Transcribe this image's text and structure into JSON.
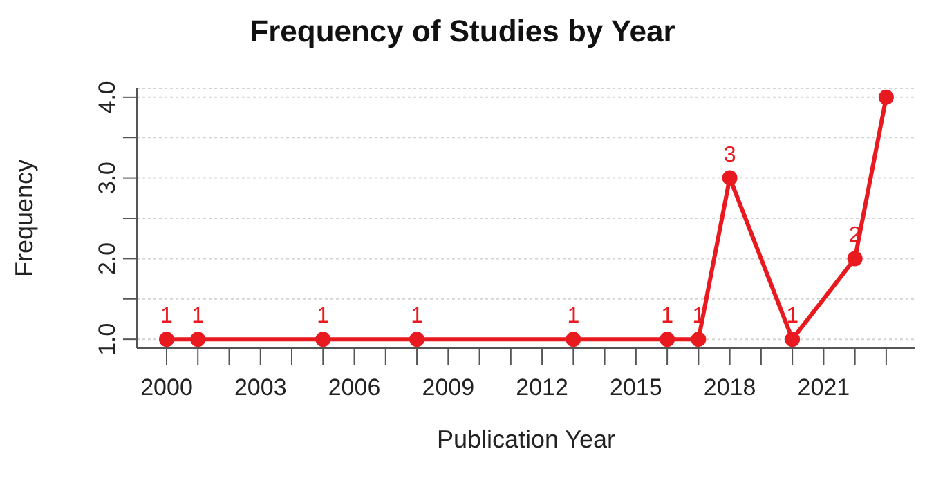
{
  "chart_data": {
    "type": "line",
    "title": "Frequency of Studies by Year",
    "xlabel": "Publication Year",
    "ylabel": "Frequency",
    "x": [
      2000,
      2001,
      2005,
      2008,
      2013,
      2016,
      2017,
      2018,
      2020,
      2022,
      2023
    ],
    "series": [
      {
        "color": "#e8191f",
        "values": [
          1,
          1,
          1,
          1,
          1,
          1,
          1,
          3,
          1,
          2,
          4
        ],
        "value_labels": [
          "1",
          "1",
          "1",
          "1",
          "1",
          "1",
          "1",
          "3",
          "1",
          "2",
          null
        ]
      }
    ],
    "xlim": [
      1999.05,
      2023.93
    ],
    "ylim": [
      0.89,
      4.11
    ],
    "xticks": [
      2000,
      {
        "value": 2001,
        "label": null
      },
      {
        "value": 2002,
        "label": null
      },
      2003,
      {
        "value": 2004,
        "label": null
      },
      {
        "value": 2005,
        "label": null
      },
      2006,
      {
        "value": 2007,
        "label": null
      },
      {
        "value": 2008,
        "label": null
      },
      2009,
      {
        "value": 2010,
        "label": null
      },
      {
        "value": 2011,
        "label": null
      },
      2012,
      {
        "value": 2013,
        "label": null
      },
      {
        "value": 2014,
        "label": null
      },
      2015,
      {
        "value": 2016,
        "label": null
      },
      {
        "value": 2017,
        "label": null
      },
      2018,
      {
        "value": 2019,
        "label": null
      },
      {
        "value": 2020,
        "label": null
      },
      2021,
      {
        "value": 2022,
        "label": null
      },
      {
        "value": 2023,
        "label": null
      }
    ],
    "yticks": [
      {
        "value": 1,
        "label": "1.0"
      },
      {
        "value": 1.5,
        "label": null
      },
      {
        "value": 2,
        "label": "2.0"
      },
      {
        "value": 2.5,
        "label": null
      },
      {
        "value": 3,
        "label": "3.0"
      },
      {
        "value": 3.5,
        "label": null
      },
      {
        "value": 4,
        "label": "4.0"
      }
    ],
    "grid": "y",
    "marker": "circle",
    "line_style": "solid",
    "legend": false
  }
}
